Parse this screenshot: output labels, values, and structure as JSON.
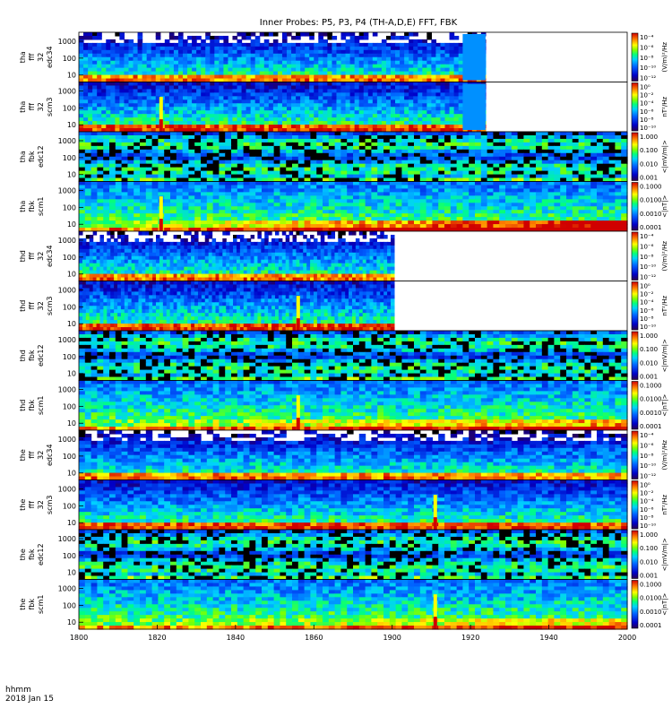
{
  "chart_data": {
    "type": "heatmap",
    "title": "Inner Probes: P5, P3, P4 (TH-A,D,E) FFT, FBK",
    "x_axis": {
      "ticks": [
        "1800",
        "1820",
        "1840",
        "1860",
        "1900",
        "1920",
        "1940",
        "2000"
      ],
      "label_lines": [
        "hhmm",
        "2018 Jan 15"
      ],
      "range_hhmm": [
        "1800",
        "2000"
      ]
    },
    "y_ticks_freq": [
      "1000",
      "100",
      "10"
    ],
    "panels": [
      {
        "label": [
          "tha",
          "fff",
          "32",
          "edc34"
        ],
        "cbar": [
          "10⁻⁴",
          "10⁻⁶",
          "10⁻⁸",
          "10⁻¹⁰",
          "10⁻¹²"
        ],
        "cbar_label": "(V/m)²/Hz",
        "data_end_hhmm": "1929",
        "fill_end_hhmm": "1924",
        "hot": 0.25,
        "spike_hhmm": null,
        "type": "fff_e"
      },
      {
        "label": [
          "tha",
          "fff",
          "32",
          "scm3"
        ],
        "cbar": [
          "10⁰",
          "10⁻²",
          "10⁻⁴",
          "10⁻⁶",
          "10⁻⁸",
          "10⁻¹⁰"
        ],
        "cbar_label": "nT²/Hz",
        "data_end_hhmm": "1929",
        "fill_end_hhmm": "1924",
        "hot": 0.3,
        "spike_hhmm": "1818",
        "type": "fff_b"
      },
      {
        "label": [
          "tha",
          "fbk",
          "edc12"
        ],
        "cbar": [
          "1.000",
          "0.100",
          "0.010",
          "0.001"
        ],
        "cbar_label": "<|mV/m|>",
        "data_end_hhmm": "2000",
        "fill_end_hhmm": "2000",
        "hot": 0.3,
        "spike_hhmm": null,
        "type": "fbk_e"
      },
      {
        "label": [
          "tha",
          "fbk",
          "scm1"
        ],
        "cbar": [
          "0.1000",
          "0.0100",
          "0.0010",
          "0.0001"
        ],
        "cbar_label": "<|nT|>",
        "data_end_hhmm": "2000",
        "fill_end_hhmm": "2000",
        "hot": 0.9,
        "spike_hhmm": "1818",
        "type": "fbk_b"
      },
      {
        "label": [
          "thd",
          "fff",
          "32",
          "edc34"
        ],
        "cbar": [
          "10⁻⁴",
          "10⁻⁶",
          "10⁻⁸",
          "10⁻¹⁰",
          "10⁻¹²"
        ],
        "cbar_label": "(V/m)²/Hz",
        "data_end_hhmm": "1909",
        "fill_end_hhmm": "1909",
        "hot": 0.3,
        "spike_hhmm": null,
        "type": "fff_e"
      },
      {
        "label": [
          "thd",
          "fff",
          "32",
          "scm3"
        ],
        "cbar": [
          "10⁰",
          "10⁻²",
          "10⁻⁴",
          "10⁻⁶",
          "10⁻⁸",
          "10⁻¹⁰"
        ],
        "cbar_label": "nT²/Hz",
        "data_end_hhmm": "1909",
        "fill_end_hhmm": "1909",
        "hot": 0.3,
        "spike_hhmm": "1848",
        "type": "fff_b"
      },
      {
        "label": [
          "thd",
          "fbk",
          "edc12"
        ],
        "cbar": [
          "1.000",
          "0.100",
          "0.010",
          "0.001"
        ],
        "cbar_label": "<|mV/m|>",
        "data_end_hhmm": "2000",
        "fill_end_hhmm": "2000",
        "hot": 0.2,
        "spike_hhmm": null,
        "type": "fbk_e"
      },
      {
        "label": [
          "thd",
          "fbk",
          "scm1"
        ],
        "cbar": [
          "0.1000",
          "0.0100",
          "0.0010",
          "0.0001"
        ],
        "cbar_label": "<|nT|>",
        "data_end_hhmm": "2000",
        "fill_end_hhmm": "2000",
        "hot": 0.5,
        "spike_hhmm": "1848",
        "type": "fbk_b"
      },
      {
        "label": [
          "the",
          "fff",
          "32",
          "edc34"
        ],
        "cbar": [
          "10⁻⁴",
          "10⁻⁶",
          "10⁻⁸",
          "10⁻¹⁰",
          "10⁻¹²"
        ],
        "cbar_label": "(V/m)²/Hz",
        "data_end_hhmm": "2000",
        "fill_end_hhmm": "2000",
        "hot": 0.25,
        "spike_hhmm": null,
        "type": "fff_e"
      },
      {
        "label": [
          "the",
          "fff",
          "32",
          "scm3"
        ],
        "cbar": [
          "10⁰",
          "10⁻²",
          "10⁻⁴",
          "10⁻⁶",
          "10⁻⁸",
          "10⁻¹⁰"
        ],
        "cbar_label": "nT²/Hz",
        "data_end_hhmm": "2000",
        "fill_end_hhmm": "2000",
        "hot": 0.3,
        "spike_hhmm": "1918",
        "type": "fff_b"
      },
      {
        "label": [
          "the",
          "fbk",
          "edc12"
        ],
        "cbar": [
          "1.000",
          "0.100",
          "0.010",
          "0.001"
        ],
        "cbar_label": "<|mV/m|>",
        "data_end_hhmm": "2000",
        "fill_end_hhmm": "2000",
        "hot": 0.2,
        "spike_hhmm": null,
        "type": "fbk_e"
      },
      {
        "label": [
          "the",
          "fbk",
          "scm1"
        ],
        "cbar": [
          "0.1000",
          "0.0100",
          "0.0010",
          "0.0001"
        ],
        "cbar_label": "<|nT|>",
        "data_end_hhmm": "2000",
        "fill_end_hhmm": "2000",
        "hot": 0.35,
        "spike_hhmm": "1918",
        "type": "fbk_b"
      }
    ]
  }
}
